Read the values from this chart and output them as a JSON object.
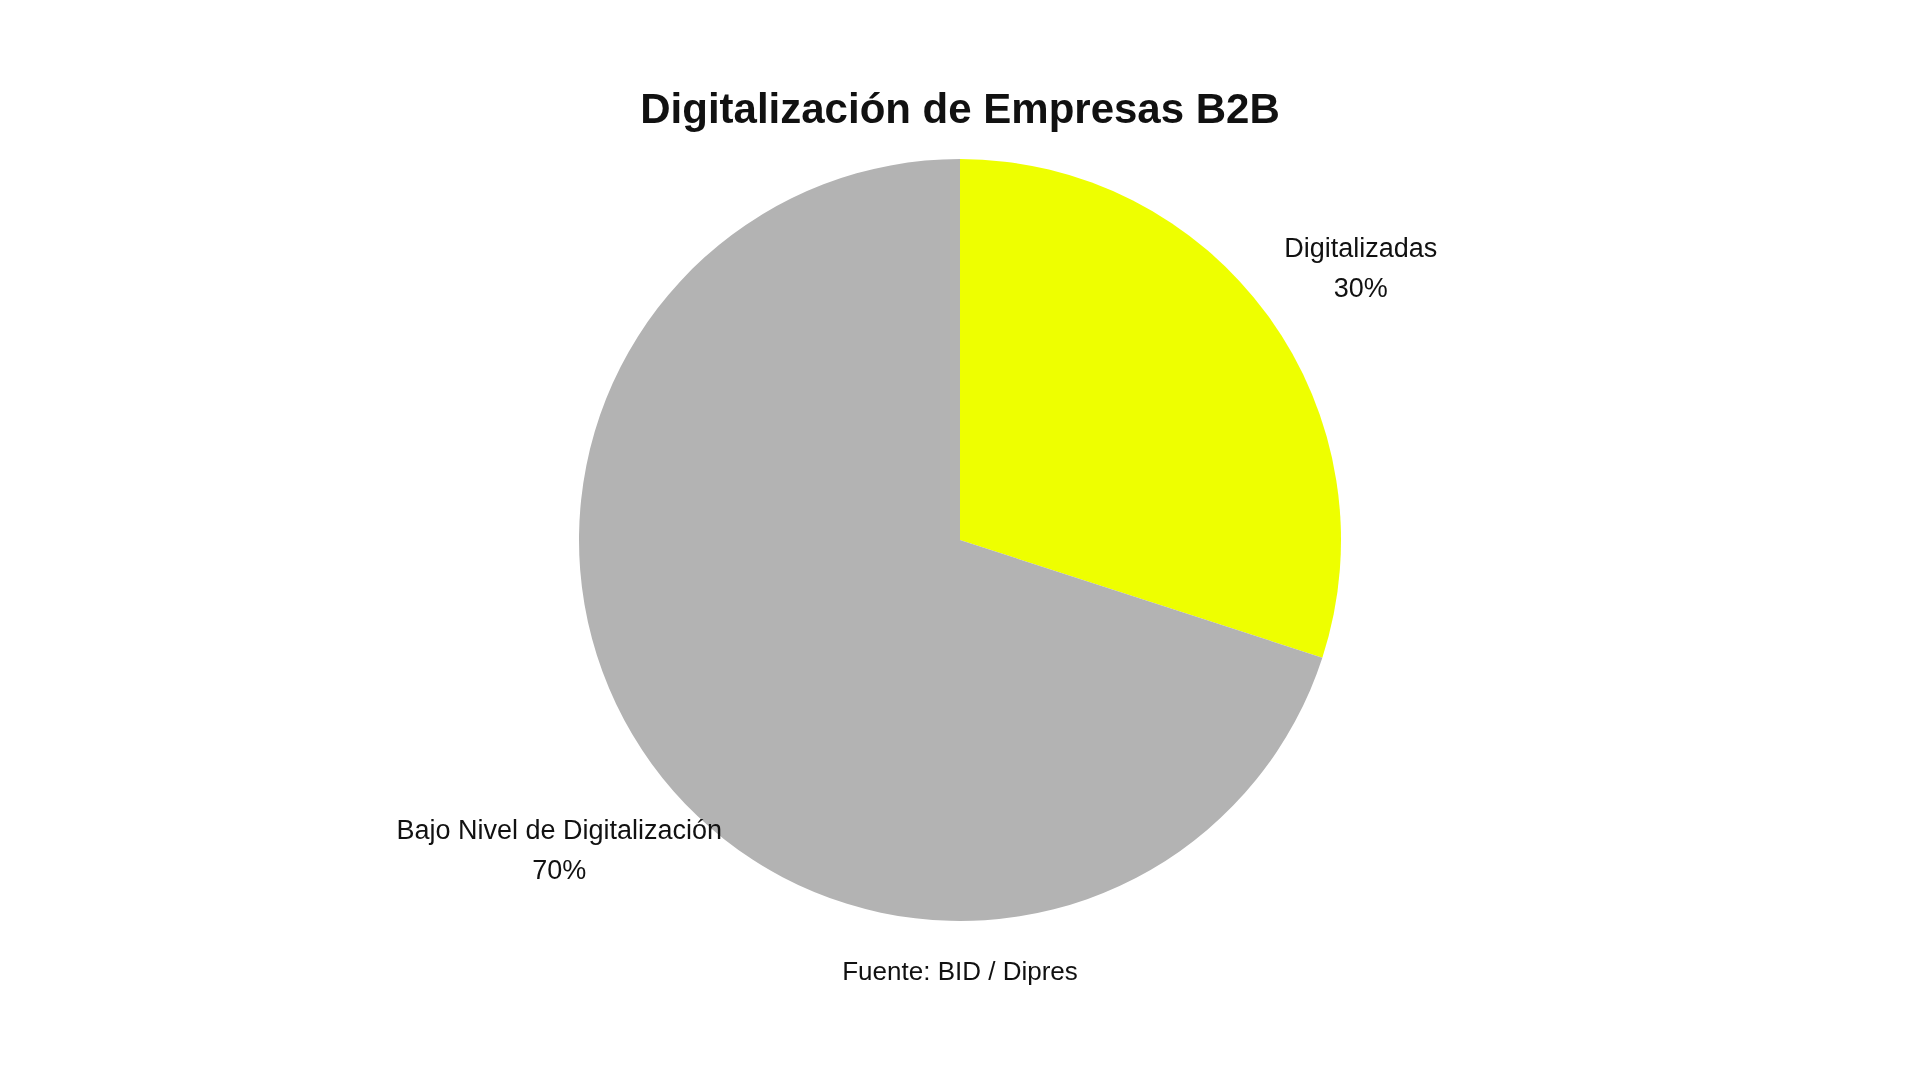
{
  "chart_data": {
    "type": "pie",
    "title": "Digitalización de Empresas B2B",
    "categories": [
      "Digitalizadas",
      "Bajo Nivel de Digitalización"
    ],
    "values": [
      30,
      70
    ],
    "colors": [
      "#eeff00",
      "#b3b3b3"
    ],
    "value_labels": [
      "30%",
      "70%"
    ],
    "annotations": [
      "Fuente: BID / Dipres"
    ]
  }
}
